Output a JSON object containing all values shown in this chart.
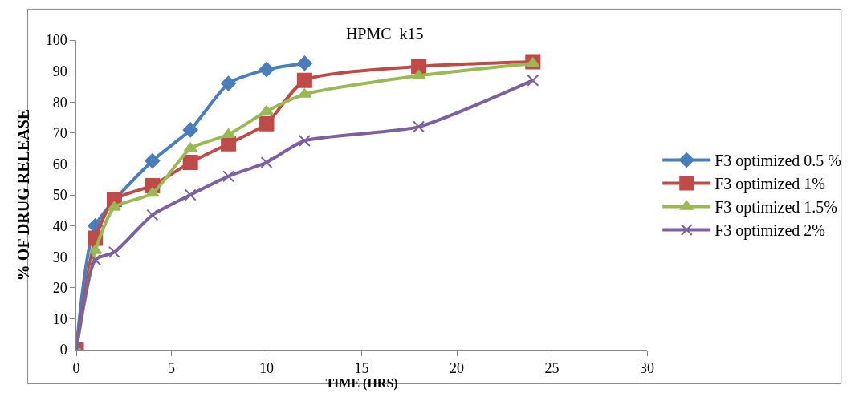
{
  "chart_data": {
    "type": "line",
    "title": "HPMC  k15",
    "xlabel": "TIME (HRS)",
    "ylabel": "% OF DRUG RELEASE",
    "xlim": [
      0,
      30
    ],
    "xticks": [
      0,
      5,
      10,
      15,
      20,
      25,
      30
    ],
    "ylim": [
      0,
      100
    ],
    "yticks": [
      0,
      10,
      20,
      30,
      40,
      50,
      60,
      70,
      80,
      90,
      100
    ],
    "legend": "right",
    "series": [
      {
        "name": "F3 optimized 0.5 %",
        "color": "#4a7ebb",
        "marker": "diamond",
        "x": [
          0,
          1,
          2,
          4,
          6,
          8,
          10,
          12
        ],
        "values": [
          0,
          40,
          null,
          61,
          71,
          86,
          90.5,
          92.5
        ]
      },
      {
        "name": "F3 optimized 1%",
        "color": "#be4b48",
        "marker": "square",
        "x": [
          0,
          1,
          2,
          4,
          6,
          8,
          10,
          12,
          18,
          24
        ],
        "values": [
          0,
          36,
          48.5,
          53,
          60.5,
          66.5,
          73,
          87,
          91.5,
          93
        ]
      },
      {
        "name": "F3 optimized 1.5%",
        "color": "#98b954",
        "marker": "triangle",
        "x": [
          0,
          1,
          2,
          4,
          6,
          8,
          10,
          12,
          18,
          24
        ],
        "values": [
          0,
          32,
          46,
          50.5,
          65,
          69.5,
          77,
          82.5,
          88.5,
          92.5
        ]
      },
      {
        "name": "F3 optimized 2%",
        "color": "#7d60a0",
        "marker": "cross",
        "x": [
          0,
          1,
          2,
          4,
          6,
          8,
          10,
          12,
          18,
          24
        ],
        "values": [
          0,
          29,
          31.5,
          43.5,
          50,
          56,
          60.5,
          67.5,
          72,
          87
        ]
      }
    ]
  }
}
